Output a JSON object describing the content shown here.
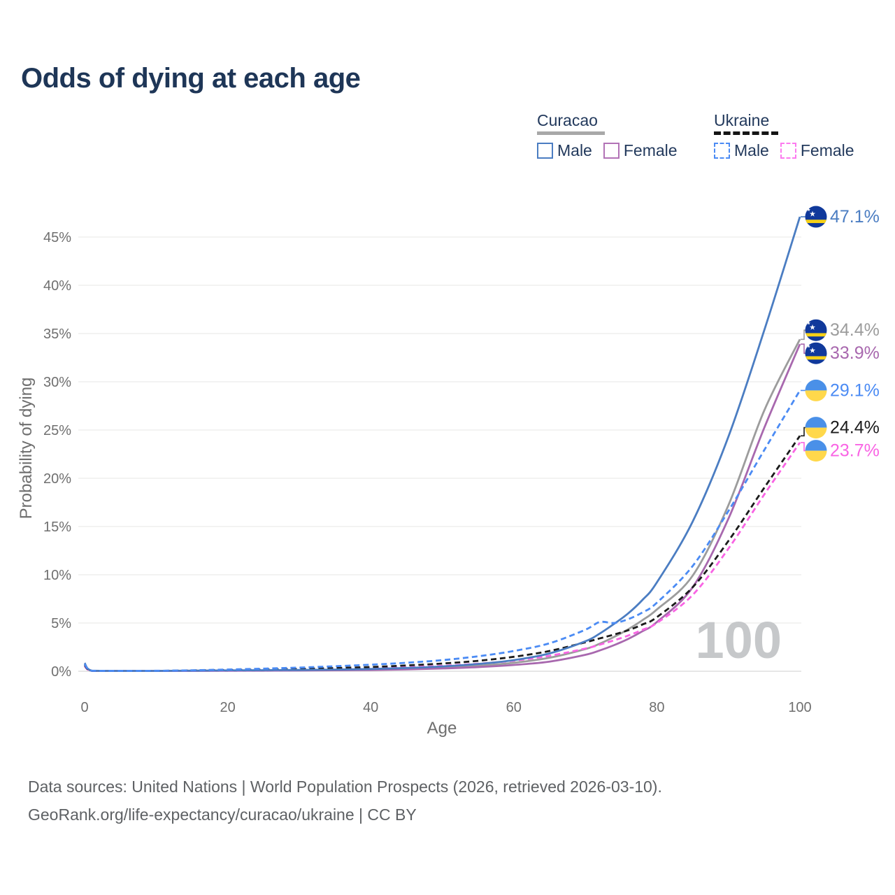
{
  "title": "Odds of dying at each age",
  "legend": {
    "groups": [
      {
        "label": "Curacao",
        "line_style": "solid",
        "line_color": "#a8a8a8",
        "items": [
          {
            "label": "Male",
            "color": "#4b7dc2",
            "dashed": false
          },
          {
            "label": "Female",
            "color": "#b273b6",
            "dashed": false
          }
        ]
      },
      {
        "label": "Ukraine",
        "line_style": "dashed",
        "line_color": "#151515",
        "items": [
          {
            "label": "Male",
            "color": "#4b8bf4",
            "dashed": true
          },
          {
            "label": "Female",
            "color": "#fc7bef",
            "dashed": true
          }
        ]
      }
    ]
  },
  "chart_data": {
    "type": "line",
    "title": "Odds of dying at each age",
    "xlabel": "Age",
    "ylabel": "Probability of dying",
    "xlim": [
      0,
      100
    ],
    "ylim": [
      0,
      47.5
    ],
    "grid": true,
    "legend_position": "top-right",
    "x_ticks": [
      0,
      20,
      40,
      60,
      80,
      100
    ],
    "y_ticks": [
      "0%",
      "5%",
      "10%",
      "15%",
      "20%",
      "25%",
      "30%",
      "35%",
      "40%",
      "45%"
    ],
    "watermark": "100",
    "ages": [
      0,
      1,
      5,
      10,
      15,
      20,
      25,
      30,
      35,
      40,
      45,
      50,
      55,
      60,
      65,
      70,
      72,
      74,
      76,
      78,
      80,
      85,
      90,
      95,
      100
    ],
    "series": [
      {
        "name": "Curacao Male",
        "country": "Curacao",
        "sex": "Male",
        "color": "#4b7dc2",
        "dashed": false,
        "flag": "curacao",
        "end_label": "47.1%",
        "end_value": 47.1,
        "values": [
          0.85,
          0.06,
          0.03,
          0.03,
          0.06,
          0.09,
          0.11,
          0.13,
          0.17,
          0.23,
          0.34,
          0.5,
          0.75,
          1.15,
          1.85,
          3.1,
          3.9,
          4.9,
          6.0,
          7.4,
          9.2,
          15.5,
          24.3,
          35.3,
          47.1
        ]
      },
      {
        "name": "Curacao Total",
        "country": "Curacao",
        "sex": "Both",
        "color": "#9c9c9c",
        "dashed": false,
        "flag": "curacao",
        "end_label": "34.4%",
        "end_value": 34.4,
        "values": [
          0.78,
          0.05,
          0.03,
          0.03,
          0.05,
          0.07,
          0.08,
          0.1,
          0.13,
          0.18,
          0.26,
          0.39,
          0.58,
          0.88,
          1.4,
          2.3,
          2.85,
          3.55,
          4.35,
          5.3,
          6.4,
          9.9,
          17.2,
          27.0,
          34.4
        ]
      },
      {
        "name": "Curacao Female",
        "country": "Curacao",
        "sex": "Female",
        "color": "#a868ae",
        "dashed": false,
        "flag": "curacao",
        "end_label": "33.9%",
        "end_value": 33.9,
        "values": [
          0.7,
          0.05,
          0.02,
          0.02,
          0.04,
          0.05,
          0.06,
          0.07,
          0.1,
          0.13,
          0.19,
          0.29,
          0.43,
          0.65,
          1.0,
          1.7,
          2.15,
          2.7,
          3.35,
          4.15,
          5.1,
          8.7,
          15.8,
          25.2,
          33.9
        ]
      },
      {
        "name": "Ukraine Male",
        "country": "Ukraine",
        "sex": "Male",
        "color": "#4b8bf4",
        "dashed": true,
        "flag": "ukraine",
        "end_label": "29.1%",
        "end_value": 29.1,
        "values": [
          0.75,
          0.05,
          0.04,
          0.05,
          0.1,
          0.18,
          0.27,
          0.38,
          0.52,
          0.68,
          0.88,
          1.15,
          1.55,
          2.1,
          2.9,
          4.3,
          5.1,
          5.0,
          5.4,
          6.1,
          7.1,
          10.9,
          16.6,
          22.9,
          29.1
        ]
      },
      {
        "name": "Ukraine Total",
        "country": "Ukraine",
        "sex": "Both",
        "color": "#1b1b1b",
        "dashed": true,
        "flag": "ukraine",
        "end_label": "24.4%",
        "end_value": 24.4,
        "values": [
          0.65,
          0.05,
          0.03,
          0.04,
          0.08,
          0.12,
          0.17,
          0.24,
          0.33,
          0.44,
          0.6,
          0.8,
          1.08,
          1.5,
          2.1,
          3.0,
          3.4,
          3.8,
          4.25,
          4.85,
          5.6,
          8.7,
          13.5,
          19.0,
          24.4
        ]
      },
      {
        "name": "Ukraine Female",
        "country": "Ukraine",
        "sex": "Female",
        "color": "#f964e4",
        "dashed": true,
        "flag": "ukraine",
        "end_label": "23.7%",
        "end_value": 23.7,
        "values": [
          0.55,
          0.04,
          0.03,
          0.03,
          0.05,
          0.07,
          0.1,
          0.14,
          0.2,
          0.28,
          0.4,
          0.56,
          0.78,
          1.1,
          1.6,
          2.35,
          2.75,
          3.2,
          3.7,
          4.3,
          5.0,
          7.9,
          12.7,
          18.3,
          23.7
        ]
      }
    ],
    "flags": {
      "curacao": {
        "blue": "#10399b",
        "yellow": "#f6d117",
        "star": "#ffffff"
      },
      "ukraine": {
        "blue": "#4a90e8",
        "yellow": "#ffd84b"
      }
    }
  },
  "styles": {
    "title_color": "#1e3657",
    "legend_text_color": "#22395c",
    "tick_color": "#6f6f6f",
    "grid_color": "#ececeb",
    "axis_line_color": "#d8d8d8",
    "watermark_color": "#c6c8ca",
    "footer_color": "#5e6164"
  },
  "footer": {
    "line1": "Data sources: United Nations | World Population Prospects (2026, retrieved 2026-03-10).",
    "line2": "GeoRank.org/life-expectancy/curacao/ukraine | CC BY"
  }
}
